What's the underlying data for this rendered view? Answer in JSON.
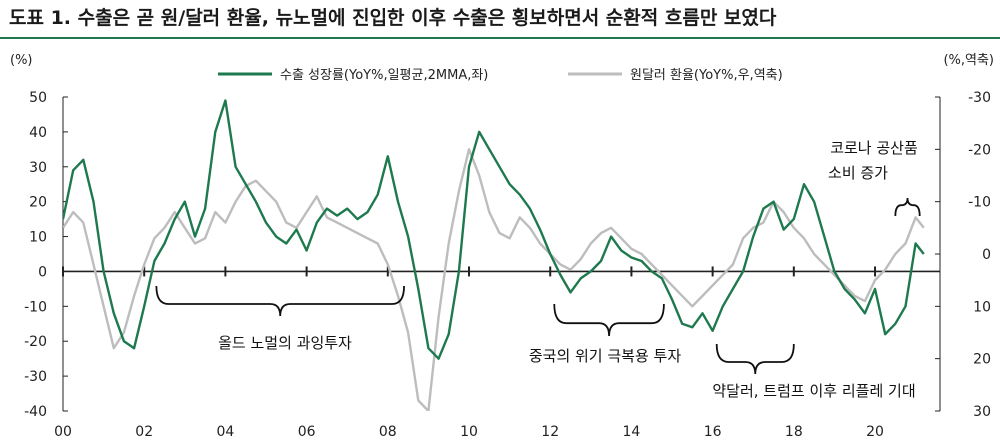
{
  "header": {
    "title": "도표 1. 수출은 곧 원/달러 환율, 뉴노멀에 진입한 이후 수출은 횡보하면서 순환적 흐름만 보였다"
  },
  "colors": {
    "accent": "#1e7a4e",
    "export_series": "#1e7a4e",
    "fx_series": "#bdbdbd",
    "axis": "#222222"
  },
  "chart_data": {
    "type": "line",
    "y_left": {
      "unit_label": "(%)",
      "ylim": [
        -40,
        50
      ],
      "ticks": [
        50,
        40,
        30,
        20,
        10,
        0,
        -10,
        -20,
        -30,
        -40
      ]
    },
    "y_right": {
      "unit_label": "(%,역축)",
      "ylim": [
        30,
        -30
      ],
      "inverted": true,
      "ticks": [
        -30,
        -20,
        -10,
        0,
        10,
        20,
        30
      ]
    },
    "x_axis": {
      "xlim": [
        2000,
        2021.6
      ],
      "tick_labels": [
        "00",
        "02",
        "04",
        "06",
        "08",
        "10",
        "12",
        "14",
        "16",
        "18",
        "20"
      ],
      "tick_values": [
        2000,
        2002,
        2004,
        2006,
        2008,
        2010,
        2012,
        2014,
        2016,
        2018,
        2020
      ]
    },
    "legend_position": "top-center",
    "series": [
      {
        "name": "수출 성장률(YoY%,일평균,2MMA,좌)",
        "axis": "left",
        "x": [
          2000.0,
          2000.25,
          2000.5,
          2000.75,
          2001.0,
          2001.25,
          2001.5,
          2001.75,
          2002.0,
          2002.25,
          2002.5,
          2002.75,
          2003.0,
          2003.25,
          2003.5,
          2003.75,
          2004.0,
          2004.25,
          2004.5,
          2004.75,
          2005.0,
          2005.25,
          2005.5,
          2005.75,
          2006.0,
          2006.25,
          2006.5,
          2006.75,
          2007.0,
          2007.25,
          2007.5,
          2007.75,
          2008.0,
          2008.25,
          2008.5,
          2008.75,
          2009.0,
          2009.25,
          2009.5,
          2009.75,
          2010.0,
          2010.25,
          2010.5,
          2010.75,
          2011.0,
          2011.25,
          2011.5,
          2011.75,
          2012.0,
          2012.25,
          2012.5,
          2012.75,
          2013.0,
          2013.25,
          2013.5,
          2013.75,
          2014.0,
          2014.25,
          2014.5,
          2014.75,
          2015.0,
          2015.25,
          2015.5,
          2015.75,
          2016.0,
          2016.25,
          2016.5,
          2016.75,
          2017.0,
          2017.25,
          2017.5,
          2017.75,
          2018.0,
          2018.25,
          2018.5,
          2018.75,
          2019.0,
          2019.25,
          2019.5,
          2019.75,
          2020.0,
          2020.25,
          2020.5,
          2020.75,
          2021.0,
          2021.2
        ],
        "values": [
          15,
          29,
          32,
          20,
          0,
          -12,
          -20,
          -22,
          -10,
          3,
          8,
          15,
          20,
          10,
          18,
          40,
          49,
          30,
          25,
          20,
          14,
          10,
          8,
          12,
          6,
          14,
          18,
          16,
          18,
          15,
          17,
          22,
          33,
          20,
          10,
          -5,
          -22,
          -25,
          -18,
          0,
          30,
          40,
          35,
          30,
          25,
          22,
          18,
          12,
          5,
          -1,
          -6,
          -2,
          0,
          3,
          10,
          6,
          4,
          3,
          0,
          -2,
          -8,
          -15,
          -16,
          -12,
          -17,
          -10,
          -5,
          0,
          10,
          18,
          20,
          12,
          15,
          25,
          20,
          10,
          0,
          -5,
          -8,
          -12,
          -5,
          -18,
          -15,
          -10,
          8,
          5
        ]
      },
      {
        "name": "원달러 환율(YoY%,우,역축)",
        "axis": "right",
        "x": [
          2000.0,
          2000.25,
          2000.5,
          2000.75,
          2001.0,
          2001.25,
          2001.5,
          2001.75,
          2002.0,
          2002.25,
          2002.5,
          2002.75,
          2003.0,
          2003.25,
          2003.5,
          2003.75,
          2004.0,
          2004.25,
          2004.5,
          2004.75,
          2005.0,
          2005.25,
          2005.5,
          2005.75,
          2006.0,
          2006.25,
          2006.5,
          2006.75,
          2007.0,
          2007.25,
          2007.5,
          2007.75,
          2008.0,
          2008.25,
          2008.5,
          2008.75,
          2009.0,
          2009.25,
          2009.5,
          2009.75,
          2010.0,
          2010.25,
          2010.5,
          2010.75,
          2011.0,
          2011.25,
          2011.5,
          2011.75,
          2012.0,
          2012.25,
          2012.5,
          2012.75,
          2013.0,
          2013.25,
          2013.5,
          2013.75,
          2014.0,
          2014.25,
          2014.5,
          2014.75,
          2015.0,
          2015.25,
          2015.5,
          2015.75,
          2016.0,
          2016.25,
          2016.5,
          2016.75,
          2017.0,
          2017.25,
          2017.5,
          2017.75,
          2018.0,
          2018.25,
          2018.5,
          2018.75,
          2019.0,
          2019.25,
          2019.5,
          2019.75,
          2020.0,
          2020.25,
          2020.5,
          2020.75,
          2021.0,
          2021.2
        ],
        "values": [
          -5,
          -8,
          -6,
          2,
          10,
          18,
          15,
          8,
          2,
          -3,
          -5,
          -8,
          -5,
          -2,
          -3,
          -8,
          -6,
          -10,
          -13,
          -14,
          -12,
          -10,
          -6,
          -5,
          -8,
          -11,
          -7,
          -6,
          -5,
          -4,
          -3,
          -2,
          2,
          8,
          15,
          28,
          30,
          12,
          -2,
          -12,
          -20,
          -15,
          -8,
          -4,
          -3,
          -7,
          -5,
          -2,
          0,
          2,
          3,
          1,
          -2,
          -4,
          -5,
          -3,
          -1,
          0,
          2,
          4,
          6,
          8,
          10,
          8,
          6,
          4,
          2,
          -3,
          -5,
          -6,
          -10,
          -8,
          -5,
          -3,
          0,
          2,
          4,
          6,
          8,
          9,
          5,
          3,
          0,
          -2,
          -7,
          -5
        ]
      }
    ],
    "annotations": [
      {
        "text": "올드 노멀의 과잉투자",
        "x_range": [
          2002.3,
          2008.4
        ]
      },
      {
        "text": "중국의 위기 극복용 투자",
        "x_range": [
          2012.1,
          2014.8
        ]
      },
      {
        "text": "약달러, 트럼프 이후 리플레 기대",
        "x_range": [
          2016.1,
          2018.0
        ]
      },
      {
        "text": "코로나 공산품 소비 증가",
        "x_range": [
          2020.5,
          2021.1
        ]
      }
    ]
  }
}
